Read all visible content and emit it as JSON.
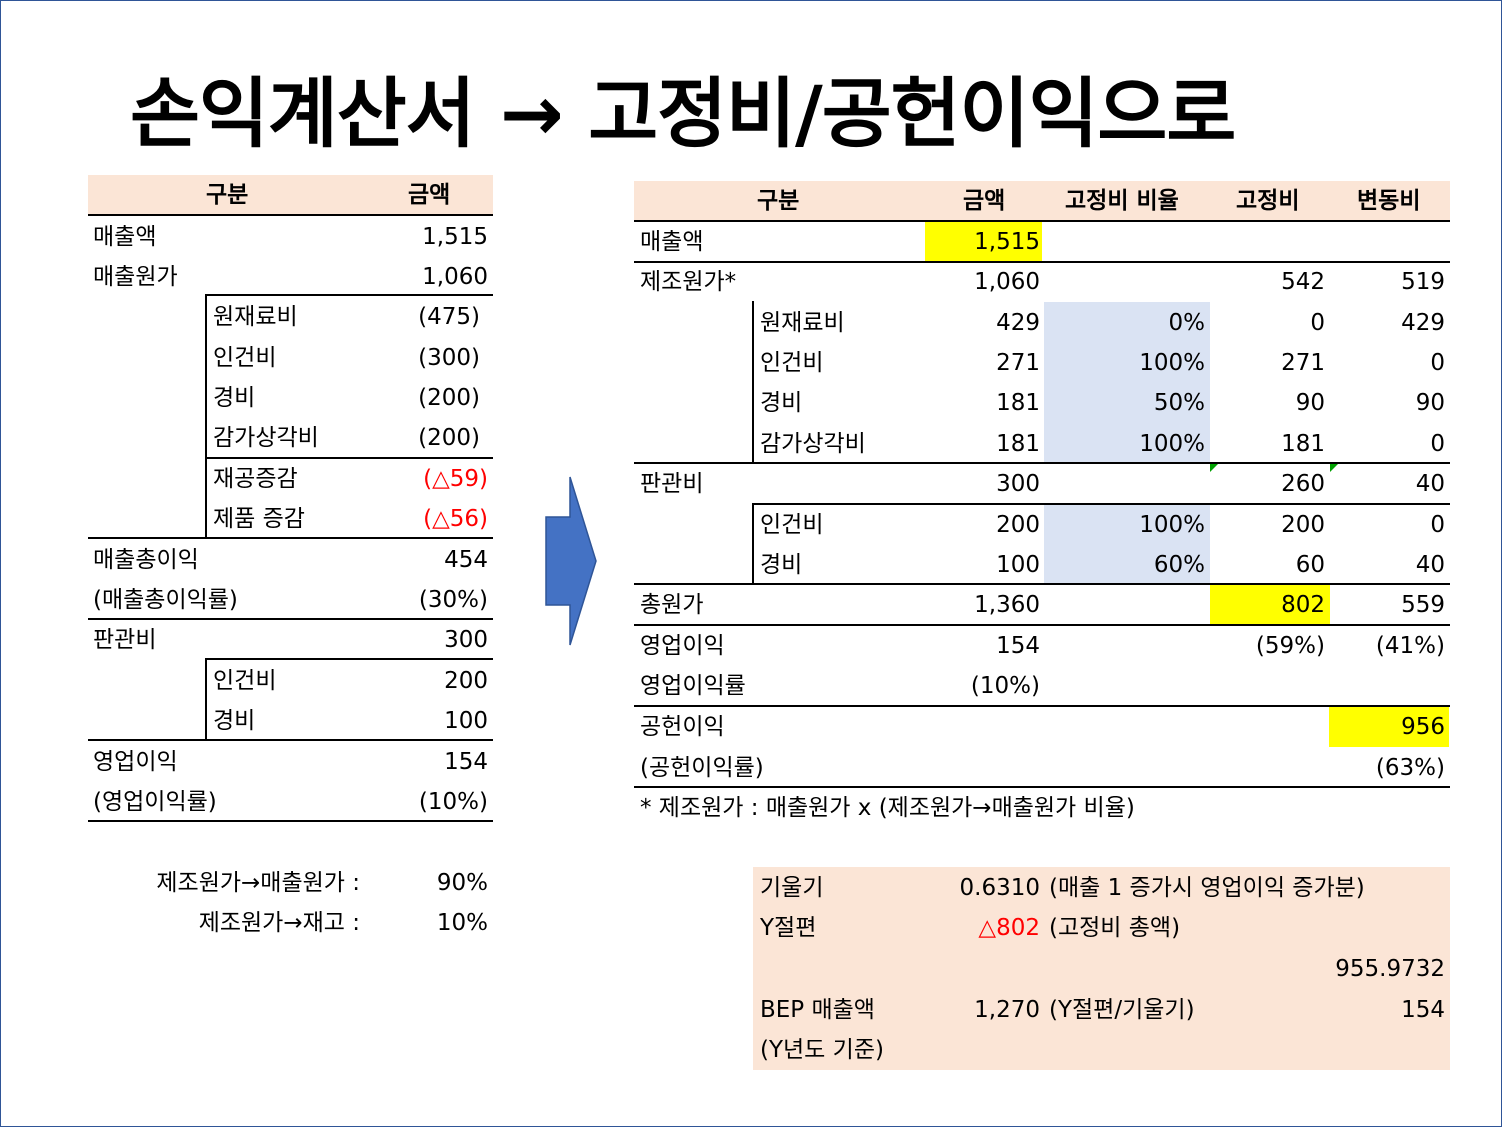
{
  "title": "손익계산서 → 고정비/공헌이익으로",
  "left": {
    "header": {
      "label": "구분",
      "amount": "금액"
    },
    "rows": [
      {
        "label": "매출액",
        "value": "1,515"
      },
      {
        "label": "매출원가",
        "value": "1,060"
      },
      {
        "label": "원재료비",
        "value": "(475)"
      },
      {
        "label": "인건비",
        "value": "(300)"
      },
      {
        "label": "경비",
        "value": "(200)"
      },
      {
        "label": "감가상각비",
        "value": "(200)"
      },
      {
        "label": "재공증감",
        "value": "(△59)"
      },
      {
        "label": "제품 증감",
        "value": "(△56)"
      },
      {
        "label": "매출총이익",
        "value": "454"
      },
      {
        "label": "(매출총이익률)",
        "value": "(30%)"
      },
      {
        "label": "판관비",
        "value": "300"
      },
      {
        "label": "인건비",
        "value": "200"
      },
      {
        "label": "경비",
        "value": "100"
      },
      {
        "label": "영업이익",
        "value": "154"
      },
      {
        "label": "(영업이익률)",
        "value": "(10%)"
      }
    ],
    "ratios": [
      {
        "label": "제조원가→매출원가 :",
        "value": "90%"
      },
      {
        "label": "제조원가→재고 :",
        "value": "10%"
      }
    ]
  },
  "right": {
    "header": {
      "label": "구분",
      "amount": "금액",
      "ratio": "고정비 비율",
      "fixed": "고정비",
      "variable": "변동비"
    },
    "rows": [
      {
        "label": "매출액",
        "amount": "1,515",
        "ratio": "",
        "fixed": "",
        "variable": ""
      },
      {
        "label": "제조원가*",
        "amount": "1,060",
        "ratio": "",
        "fixed": "542",
        "variable": "519"
      },
      {
        "label": "원재료비",
        "amount": "429",
        "ratio": "0%",
        "fixed": "0",
        "variable": "429"
      },
      {
        "label": "인건비",
        "amount": "271",
        "ratio": "100%",
        "fixed": "271",
        "variable": "0"
      },
      {
        "label": "경비",
        "amount": "181",
        "ratio": "50%",
        "fixed": "90",
        "variable": "90"
      },
      {
        "label": "감가상각비",
        "amount": "181",
        "ratio": "100%",
        "fixed": "181",
        "variable": "0"
      },
      {
        "label": "판관비",
        "amount": "300",
        "ratio": "",
        "fixed": "260",
        "variable": "40"
      },
      {
        "label": "인건비",
        "amount": "200",
        "ratio": "100%",
        "fixed": "200",
        "variable": "0"
      },
      {
        "label": "경비",
        "amount": "100",
        "ratio": "60%",
        "fixed": "60",
        "variable": "40"
      },
      {
        "label": "총원가",
        "amount": "1,360",
        "ratio": "",
        "fixed": "802",
        "variable": "559"
      },
      {
        "label": "영업이익",
        "amount": "154",
        "ratio": "",
        "fixed": "(59%)",
        "variable": "(41%)"
      },
      {
        "label": "영업이익률",
        "amount": "(10%)",
        "ratio": "",
        "fixed": "",
        "variable": ""
      },
      {
        "label": "공헌이익",
        "amount": "",
        "ratio": "",
        "fixed": "",
        "variable": "956"
      },
      {
        "label": "(공헌이익률)",
        "amount": "",
        "ratio": "",
        "fixed": "",
        "variable": "(63%)"
      }
    ],
    "footnote": "* 제조원가 : 매출원가 x (제조원가→매출원가 비율)"
  },
  "summary": {
    "slope_label": "기울기",
    "slope_value": "0.6310",
    "slope_note": "(매출 1 증가시 영업이익 증가분)",
    "intercept_label": "Y절편",
    "intercept_value": "△802",
    "intercept_note": "(고정비 총액)",
    "extra_value": "955.9732",
    "bep_label": "BEP 매출액",
    "bep_value": "1,270",
    "bep_note": "(Y절편/기울기)",
    "bep_extra": "154",
    "basis": "(Y년도 기준)"
  },
  "colors": {
    "header_bg": "#fbe5d6",
    "ratio_bg": "#dae3f3",
    "highlight": "#ffff00",
    "red": "#ff0000",
    "arrow": "#4472c4",
    "frame": "#2f5597"
  }
}
